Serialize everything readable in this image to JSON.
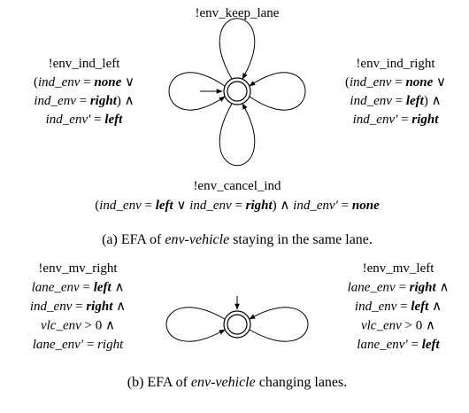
{
  "figures": [
    {
      "labels": {
        "top": [
          [
            {
              "t": "!env_keep_lane"
            }
          ]
        ],
        "left": [
          [
            {
              "t": "!env_ind_left"
            }
          ],
          [
            {
              "t": "("
            },
            {
              "t": "ind_env",
              "s": "i"
            },
            {
              "t": " = "
            },
            {
              "t": "none",
              "s": "bi"
            },
            {
              "t": " ∨"
            }
          ],
          [
            {
              "t": "ind_env",
              "s": "i"
            },
            {
              "t": " = "
            },
            {
              "t": "right",
              "s": "bi"
            },
            {
              "t": ") ∧"
            }
          ],
          [
            {
              "t": "ind_env′",
              "s": "i"
            },
            {
              "t": " = "
            },
            {
              "t": "left",
              "s": "bi"
            }
          ]
        ],
        "right": [
          [
            {
              "t": "!env_ind_right"
            }
          ],
          [
            {
              "t": "("
            },
            {
              "t": "ind_env",
              "s": "i"
            },
            {
              "t": " = "
            },
            {
              "t": "none",
              "s": "bi"
            },
            {
              "t": " ∨"
            }
          ],
          [
            {
              "t": "ind_env",
              "s": "i"
            },
            {
              "t": " = "
            },
            {
              "t": "left",
              "s": "bi"
            },
            {
              "t": ") ∧"
            }
          ],
          [
            {
              "t": "ind_env′",
              "s": "i"
            },
            {
              "t": " = "
            },
            {
              "t": "right",
              "s": "bi"
            }
          ]
        ],
        "bottom": [
          [
            {
              "t": "!env_cancel_ind"
            }
          ],
          [
            {
              "t": "("
            },
            {
              "t": "ind_env",
              "s": "i"
            },
            {
              "t": " = "
            },
            {
              "t": "left",
              "s": "bi"
            },
            {
              "t": " ∨ "
            },
            {
              "t": "ind_env",
              "s": "i"
            },
            {
              "t": " = "
            },
            {
              "t": "right",
              "s": "bi"
            },
            {
              "t": ") ∧ "
            },
            {
              "t": "ind_env′",
              "s": "i"
            },
            {
              "t": " = "
            },
            {
              "t": "none",
              "s": "bi"
            }
          ]
        ]
      },
      "caption": [
        {
          "t": "(a) EFA of "
        },
        {
          "t": "env-vehicle",
          "s": "i"
        },
        {
          "t": " staying in the same lane."
        }
      ]
    },
    {
      "labels": {
        "left": [
          [
            {
              "t": "!env_mv_right"
            }
          ],
          [
            {
              "t": "lane_env",
              "s": "i"
            },
            {
              "t": " = "
            },
            {
              "t": "left",
              "s": "bi"
            },
            {
              "t": " ∧"
            }
          ],
          [
            {
              "t": "ind_env",
              "s": "i"
            },
            {
              "t": " = "
            },
            {
              "t": "right",
              "s": "bi"
            },
            {
              "t": " ∧"
            }
          ],
          [
            {
              "t": "vlc_env",
              "s": "i"
            },
            {
              "t": " > 0 ∧"
            }
          ],
          [
            {
              "t": "lane_env′",
              "s": "i"
            },
            {
              "t": " = "
            },
            {
              "t": "right",
              "s": "i"
            }
          ]
        ],
        "right": [
          [
            {
              "t": "!env_mv_left"
            }
          ],
          [
            {
              "t": "lane_env",
              "s": "i"
            },
            {
              "t": " = "
            },
            {
              "t": "right",
              "s": "bi"
            },
            {
              "t": " ∧"
            }
          ],
          [
            {
              "t": "ind_env",
              "s": "i"
            },
            {
              "t": " = "
            },
            {
              "t": "left",
              "s": "bi"
            },
            {
              "t": " ∧"
            }
          ],
          [
            {
              "t": "vlc_env",
              "s": "i"
            },
            {
              "t": " > 0 ∧"
            }
          ],
          [
            {
              "t": "lane_env′",
              "s": "i"
            },
            {
              "t": " = "
            },
            {
              "t": "left",
              "s": "bi"
            }
          ]
        ]
      },
      "caption": [
        {
          "t": "(b) EFA of "
        },
        {
          "t": "env-vehicle",
          "s": "i"
        },
        {
          "t": " changing lanes."
        }
      ]
    }
  ]
}
